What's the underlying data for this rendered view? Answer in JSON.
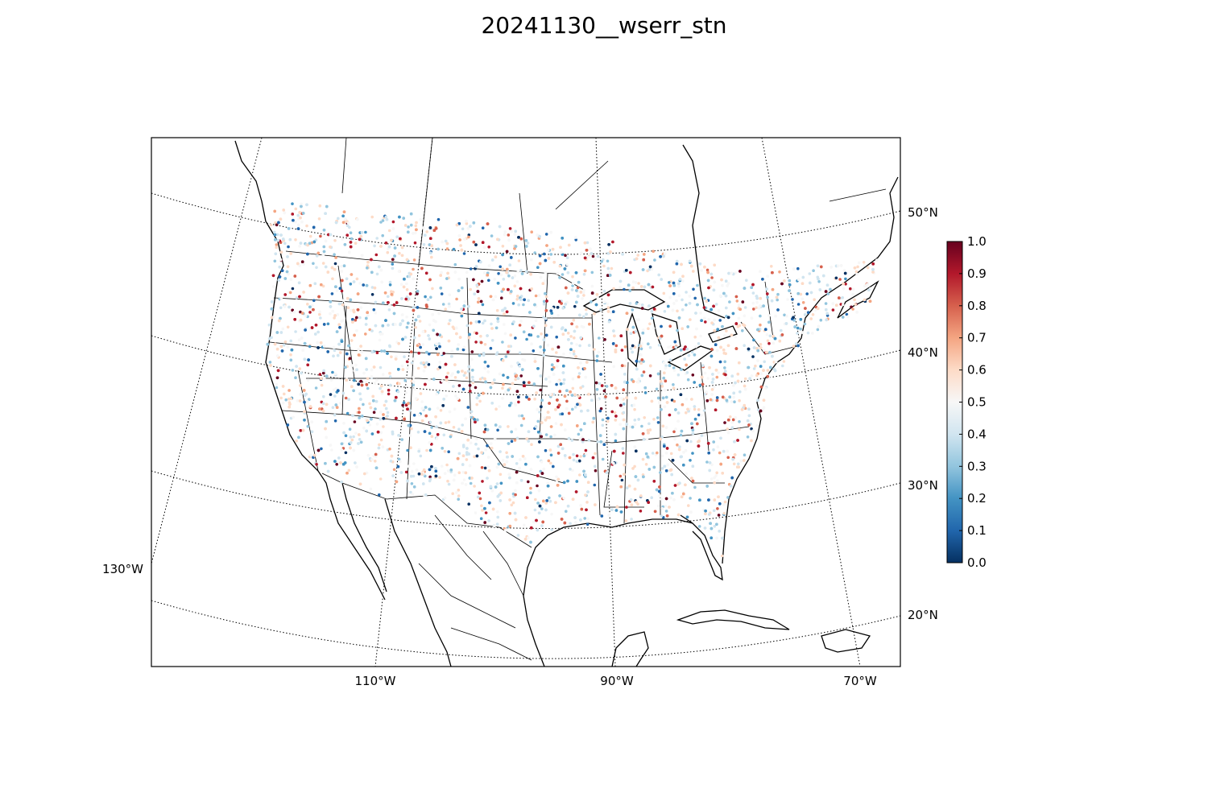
{
  "title": "20241130__wserr_stn",
  "lat_labels": [
    "50°N",
    "40°N",
    "30°N",
    "20°N"
  ],
  "lon_labels": [
    "110°W",
    "90°W",
    "70°W",
    "130°W"
  ],
  "colorbar": {
    "ticks": [
      "1.0",
      "0.9",
      "0.8",
      "0.7",
      "0.6",
      "0.5",
      "0.4",
      "0.3",
      "0.2",
      "0.1",
      "0.0"
    ],
    "colormap": "RdBu_r",
    "min": 0.0,
    "max": 1.0,
    "stops": [
      "#053061",
      "#2166ac",
      "#4393c3",
      "#92c5de",
      "#d1e5f0",
      "#f7f7f7",
      "#fddbc7",
      "#f4a582",
      "#d6604d",
      "#b2182b",
      "#67001f"
    ]
  },
  "map": {
    "projection": "lambert-conformal",
    "parallels": [
      20,
      30,
      40,
      50
    ],
    "meridians": [
      -130,
      -110,
      -90,
      -70
    ],
    "extent": "contiguous United States, southern Canada, northern Mexico, Caribbean"
  }
}
